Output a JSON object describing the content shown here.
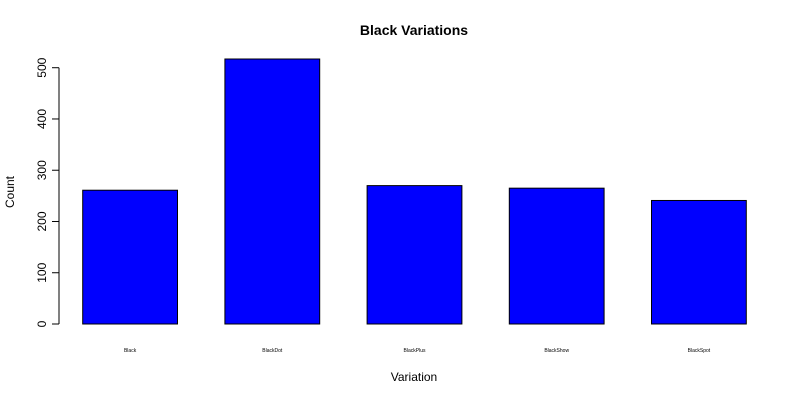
{
  "chart_data": {
    "type": "bar",
    "title": "Black Variations",
    "xlabel": "Variation",
    "ylabel": "Count",
    "categories": [
      "Black",
      "BlackDot",
      "BlackPlus",
      "BlackShow",
      "BlackSpot"
    ],
    "values": [
      261,
      517,
      270,
      265,
      241
    ],
    "ylim": [
      0,
      517
    ],
    "yticks": [
      0,
      100,
      200,
      300,
      400,
      500
    ],
    "bar_color": "#0000ff",
    "bar_edge_color": "#000000",
    "grid": false,
    "legend": "none"
  }
}
